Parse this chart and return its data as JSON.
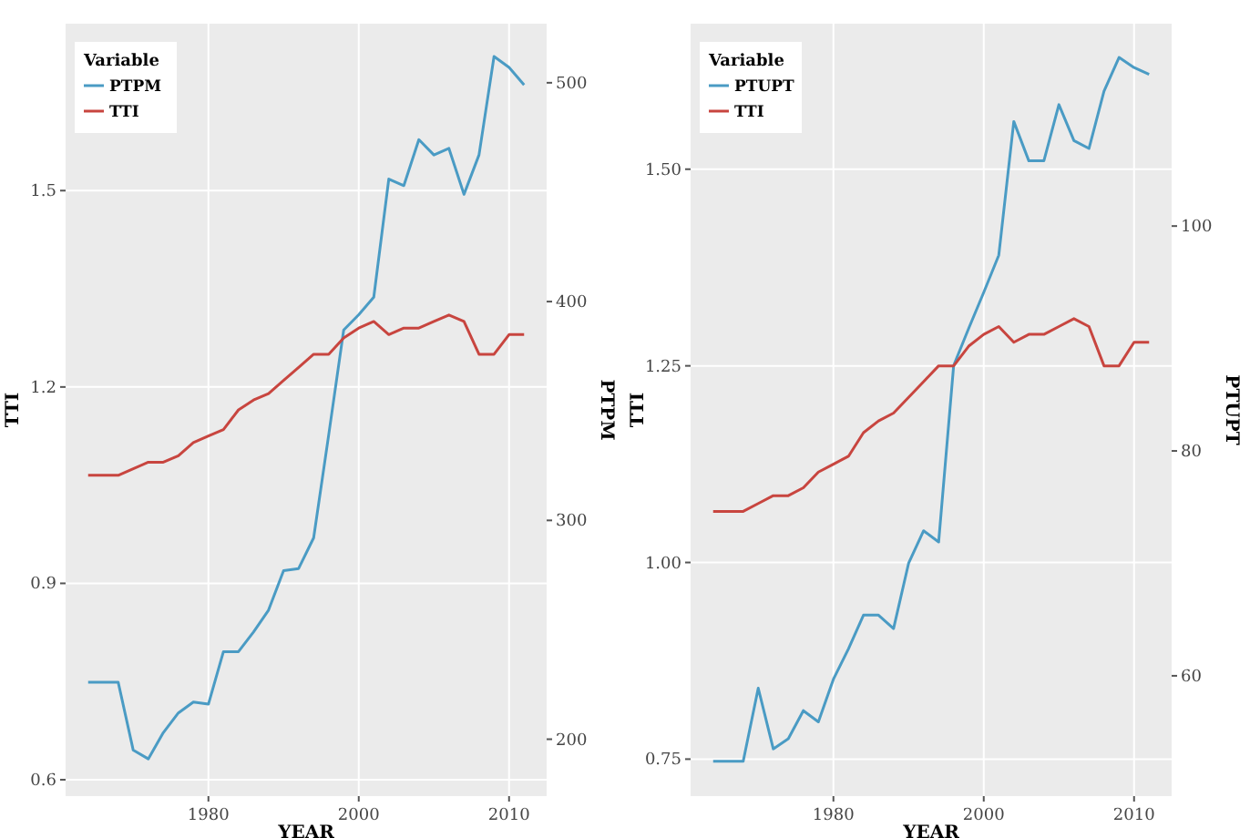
{
  "chart_data": [
    {
      "type": "line",
      "xlabel": "YEAR",
      "ylabel": "TTI",
      "y2label": "PTPM",
      "legend_title": "Variable",
      "legend": "top left",
      "grid": true,
      "categories": [
        null,
        null,
        null,
        null,
        null,
        null,
        null,
        null,
        "1980",
        null,
        null,
        null,
        null,
        null,
        null,
        null,
        null,
        null,
        "2000",
        null,
        null,
        null,
        null,
        null,
        null,
        null,
        null,
        null,
        "2010",
        null
      ],
      "ylim": [
        0.575,
        1.755
      ],
      "yticks": [
        0.6,
        0.9,
        1.2,
        1.5
      ],
      "y2lim": [
        174,
        527
      ],
      "y2ticks": [
        200,
        300,
        400,
        500
      ],
      "series": [
        {
          "name": "PTPM",
          "color": "#4a9bc4",
          "axis": "y2",
          "values": [
            226,
            226,
            226,
            195,
            191,
            203,
            212,
            217,
            216,
            240,
            240,
            249,
            259,
            277,
            278,
            292,
            339,
            387,
            394,
            402,
            456,
            453,
            474,
            467,
            470,
            449,
            467,
            512,
            507,
            499
          ]
        },
        {
          "name": "TTI",
          "color": "#c8453f",
          "values": [
            1.065,
            1.065,
            1.065,
            1.075,
            1.085,
            1.085,
            1.095,
            1.115,
            1.125,
            1.135,
            1.165,
            1.18,
            1.19,
            1.21,
            1.23,
            1.25,
            1.25,
            1.275,
            1.29,
            1.3,
            1.28,
            1.29,
            1.29,
            1.3,
            1.31,
            1.3,
            1.25,
            1.25,
            1.28,
            1.28
          ]
        }
      ]
    },
    {
      "type": "line",
      "xlabel": "YEAR",
      "ylabel": "TTI",
      "y2label": "PTUPT",
      "legend_title": "Variable",
      "legend": "top left",
      "grid": true,
      "categories": [
        null,
        null,
        null,
        null,
        null,
        null,
        null,
        null,
        "1980",
        null,
        null,
        null,
        null,
        null,
        null,
        null,
        null,
        null,
        "2000",
        null,
        null,
        null,
        null,
        null,
        null,
        null,
        null,
        null,
        "2010",
        null
      ],
      "ylim": [
        0.703,
        1.685
      ],
      "yticks": [
        {
          "value": 0.75,
          "label": "0.75"
        },
        {
          "value": 1,
          "label": "1.00"
        },
        1.25,
        {
          "value": 1.5,
          "label": "1.50"
        }
      ],
      "y2lim": [
        49.3,
        118
      ],
      "y2ticks": [
        60,
        80,
        100
      ],
      "series": [
        {
          "name": "PTUPT",
          "color": "#4a9bc4",
          "axis": "y2",
          "values": [
            52.4,
            52.4,
            52.4,
            58.9,
            53.5,
            54.4,
            56.9,
            55.9,
            59.7,
            62.4,
            65.4,
            65.4,
            64.2,
            70,
            72.9,
            71.9,
            87.6,
            90.9,
            94.1,
            97.4,
            109.3,
            105.8,
            105.8,
            110.8,
            107.6,
            106.9,
            112,
            115,
            114.1,
            113.5
          ]
        },
        {
          "name": "TTI",
          "color": "#c8453f",
          "values": [
            1.065,
            1.065,
            1.065,
            1.075,
            1.085,
            1.085,
            1.095,
            1.115,
            1.125,
            1.135,
            1.165,
            1.18,
            1.19,
            1.21,
            1.23,
            1.25,
            1.25,
            1.275,
            1.29,
            1.3,
            1.28,
            1.29,
            1.29,
            1.3,
            1.31,
            1.3,
            1.25,
            1.25,
            1.28,
            1.28
          ]
        }
      ]
    }
  ]
}
